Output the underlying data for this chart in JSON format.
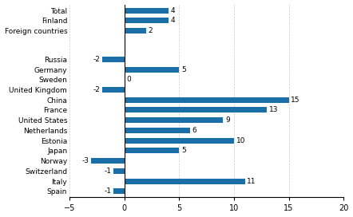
{
  "categories": [
    "Total",
    "Finland",
    "Foreign countries",
    "",
    "Russia",
    "Germany",
    "Sweden",
    "United Kingdom",
    "China",
    "France",
    "United States",
    "Netherlands",
    "Estonia",
    "Japan",
    "Norway",
    "Switzerland",
    "Italy",
    "Spain"
  ],
  "values": [
    4,
    4,
    2,
    null,
    -2,
    5,
    0,
    -2,
    15,
    13,
    9,
    6,
    10,
    5,
    -3,
    -1,
    11,
    -1
  ],
  "bar_color": "#1a6fa8",
  "xlim": [
    -5,
    20
  ],
  "xticks": [
    -5,
    0,
    5,
    10,
    15,
    20
  ],
  "figsize": [
    4.42,
    2.72
  ],
  "dpi": 100
}
